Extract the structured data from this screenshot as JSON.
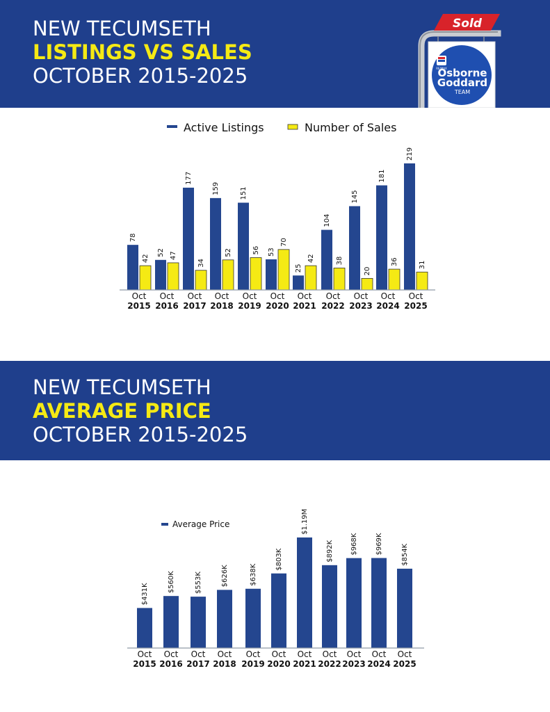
{
  "header1": {
    "line1": "NEW TECUMSETH",
    "line2": "LISTINGS VS SALES",
    "line3": "OCTOBER 2015-2025"
  },
  "header2": {
    "line1": "NEW TECUMSETH",
    "line2": "AVERAGE PRICE",
    "line3": "OCTOBER 2015-2025"
  },
  "logo": {
    "sign_text": "Sold",
    "brand_small": "RE/MAX",
    "name_line1": "Osborne",
    "name_line2": "Goddard",
    "name_line3": "TEAM"
  },
  "colors": {
    "navy": "#1f3f8c",
    "yellow": "#f5ea14",
    "red": "#d8232a",
    "bar_blue": "#24468f"
  },
  "chart_data": [
    {
      "type": "bar",
      "categories": [
        [
          "Oct",
          "2015"
        ],
        [
          "Oct",
          "2016"
        ],
        [
          "Oct",
          "2017"
        ],
        [
          "Oct",
          "2018"
        ],
        [
          "Oct",
          "2019"
        ],
        [
          "Oct",
          "2020"
        ],
        [
          "Oct",
          "2021"
        ],
        [
          "Oct",
          "2022"
        ],
        [
          "Oct",
          "2023"
        ],
        [
          "Oct",
          "2024"
        ],
        [
          "Oct",
          "2025"
        ]
      ],
      "series": [
        {
          "name": "Active Listings",
          "values": [
            78,
            52,
            177,
            159,
            151,
            53,
            25,
            104,
            145,
            181,
            219
          ],
          "labels": [
            "78",
            "52",
            "177",
            "159",
            "151",
            "53",
            "25",
            "104",
            "145",
            "181",
            "219"
          ],
          "color": "#24468f"
        },
        {
          "name": "Number of Sales",
          "values": [
            42,
            47,
            34,
            52,
            56,
            70,
            42,
            38,
            20,
            36,
            31
          ],
          "labels": [
            "42",
            "47",
            "34",
            "52",
            "56",
            "70",
            "42",
            "38",
            "20",
            "36",
            "31"
          ],
          "color": "#f5ea14"
        }
      ],
      "legend_position": "top-center",
      "ylim": [
        0,
        219
      ],
      "grid": false
    },
    {
      "type": "bar",
      "categories": [
        [
          "Oct",
          "2015"
        ],
        [
          "Oct",
          "2016"
        ],
        [
          "Oct",
          "2017"
        ],
        [
          "Oct",
          "2018"
        ],
        [
          "Oct",
          "2019"
        ],
        [
          "Oct",
          "2020"
        ],
        [
          "Oct",
          "2021"
        ],
        [
          "Oct",
          "2022"
        ],
        [
          "Oct",
          "2023"
        ],
        [
          "Oct",
          "2024"
        ],
        [
          "Oct",
          "2025"
        ]
      ],
      "series": [
        {
          "name": "Average Price",
          "values": [
            431000,
            560000,
            553000,
            626000,
            638000,
            803000,
            1190000,
            892000,
            968000,
            969000,
            854000
          ],
          "labels": [
            "$431K",
            "$560K",
            "$553K",
            "$626K",
            "$638K",
            "$803K",
            "$1.19M",
            "$892K",
            "$968K",
            "$969K",
            "$854K"
          ],
          "color": "#24468f"
        }
      ],
      "legend_position": "top-left",
      "ylim": [
        0,
        1190000
      ],
      "grid": false
    }
  ]
}
